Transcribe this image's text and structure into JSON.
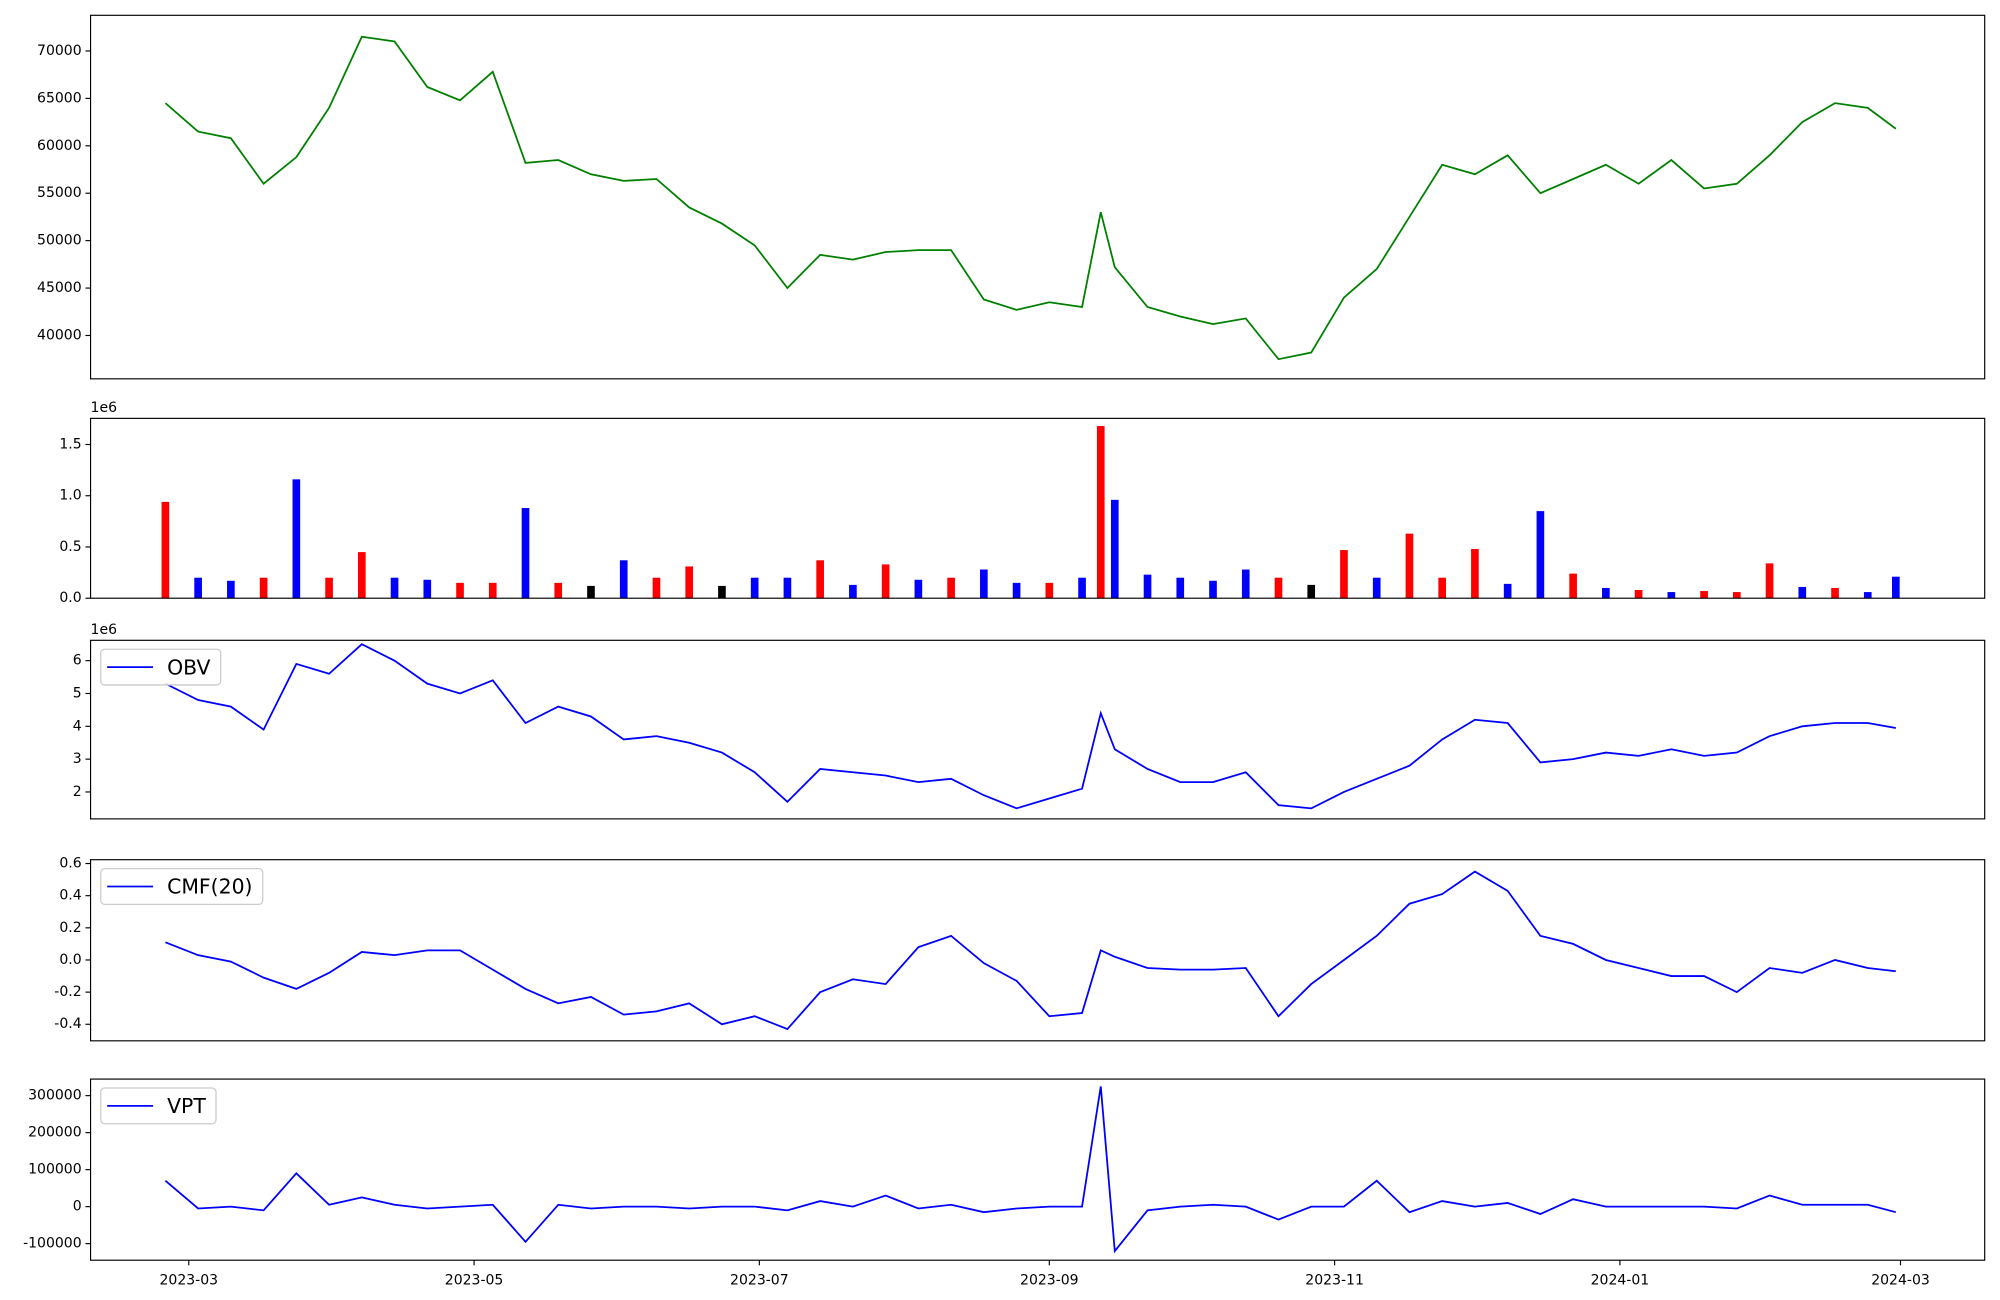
{
  "chart_data": [
    {
      "type": "line",
      "x": [
        "2023-02-24",
        "2023-03-03",
        "2023-03-10",
        "2023-03-17",
        "2023-03-24",
        "2023-03-31",
        "2023-04-07",
        "2023-04-14",
        "2023-04-21",
        "2023-04-28",
        "2023-05-05",
        "2023-05-12",
        "2023-05-19",
        "2023-05-26",
        "2023-06-02",
        "2023-06-09",
        "2023-06-16",
        "2023-06-23",
        "2023-06-30",
        "2023-07-07",
        "2023-07-14",
        "2023-07-21",
        "2023-07-28",
        "2023-08-04",
        "2023-08-11",
        "2023-08-18",
        "2023-08-25",
        "2023-09-01",
        "2023-09-08",
        "2023-09-12",
        "2023-09-15",
        "2023-09-22",
        "2023-09-29",
        "2023-10-06",
        "2023-10-13",
        "2023-10-20",
        "2023-10-27",
        "2023-11-03",
        "2023-11-10",
        "2023-11-17",
        "2023-11-24",
        "2023-12-01",
        "2023-12-08",
        "2023-12-15",
        "2023-12-22",
        "2023-12-29",
        "2024-01-05",
        "2024-01-12",
        "2024-01-19",
        "2024-01-26",
        "2024-02-02",
        "2024-02-09",
        "2024-02-16",
        "2024-02-23",
        "2024-02-29"
      ],
      "series": [
        {
          "color": "#008000",
          "values": [
            64500,
            61500,
            60800,
            56000,
            58800,
            64000,
            71500,
            71000,
            66200,
            64800,
            67800,
            58200,
            58500,
            57000,
            56300,
            56500,
            53500,
            51800,
            49500,
            45000,
            48500,
            48000,
            48800,
            49000,
            49000,
            43800,
            42700,
            43500,
            43000,
            53000,
            47200,
            43000,
            42000,
            41200,
            41800,
            37500,
            38200,
            44000,
            47000,
            52500,
            58000,
            57000,
            59000,
            55000,
            56500,
            58000,
            56000,
            58500,
            55500,
            56000,
            59000,
            62500,
            64500,
            64000,
            61800
          ]
        }
      ],
      "xlim": [
        "2023-02-08",
        "2024-03-19"
      ],
      "ylim": [
        35430,
        73760
      ],
      "yticks": [
        40000,
        45000,
        50000,
        55000,
        60000,
        65000,
        70000
      ]
    },
    {
      "type": "bar",
      "x": [
        "2023-02-24",
        "2023-03-03",
        "2023-03-10",
        "2023-03-17",
        "2023-03-24",
        "2023-03-31",
        "2023-04-07",
        "2023-04-14",
        "2023-04-21",
        "2023-04-28",
        "2023-05-05",
        "2023-05-12",
        "2023-05-19",
        "2023-05-26",
        "2023-06-02",
        "2023-06-09",
        "2023-06-16",
        "2023-06-23",
        "2023-06-30",
        "2023-07-07",
        "2023-07-14",
        "2023-07-21",
        "2023-07-28",
        "2023-08-04",
        "2023-08-11",
        "2023-08-18",
        "2023-08-25",
        "2023-09-01",
        "2023-09-08",
        "2023-09-12",
        "2023-09-15",
        "2023-09-22",
        "2023-09-29",
        "2023-10-06",
        "2023-10-13",
        "2023-10-20",
        "2023-10-27",
        "2023-11-03",
        "2023-11-10",
        "2023-11-17",
        "2023-11-24",
        "2023-12-01",
        "2023-12-08",
        "2023-12-15",
        "2023-12-22",
        "2023-12-29",
        "2024-01-05",
        "2024-01-12",
        "2024-01-19",
        "2024-01-26",
        "2024-02-02",
        "2024-02-09",
        "2024-02-16",
        "2024-02-23",
        "2024-02-29"
      ],
      "values": [
        940000,
        200000,
        170000,
        200000,
        1160000,
        200000,
        450000,
        200000,
        180000,
        150000,
        150000,
        880000,
        150000,
        120000,
        370000,
        200000,
        310000,
        120000,
        200000,
        200000,
        370000,
        130000,
        330000,
        180000,
        200000,
        280000,
        150000,
        150000,
        200000,
        1680000,
        960000,
        230000,
        200000,
        170000,
        280000,
        200000,
        130000,
        470000,
        200000,
        630000,
        200000,
        480000,
        140000,
        850000,
        240000,
        100000,
        80000,
        60000,
        70000,
        60000,
        340000,
        110000,
        100000,
        60000,
        210000
      ],
      "colors": [
        "red",
        "blue",
        "blue",
        "red",
        "blue",
        "red",
        "red",
        "blue",
        "blue",
        "red",
        "red",
        "blue",
        "red",
        "black",
        "blue",
        "red",
        "red",
        "black",
        "blue",
        "blue",
        "red",
        "blue",
        "red",
        "blue",
        "red",
        "blue",
        "blue",
        "red",
        "blue",
        "red",
        "blue",
        "blue",
        "blue",
        "blue",
        "blue",
        "red",
        "black",
        "red",
        "blue",
        "red",
        "red",
        "red",
        "blue",
        "blue",
        "red",
        "blue",
        "red",
        "blue",
        "red",
        "red",
        "red",
        "blue",
        "red",
        "blue",
        "blue"
      ],
      "xlim": [
        "2023-02-08",
        "2024-03-19"
      ],
      "ylim": [
        0,
        1755000
      ],
      "offset_text": "1e6",
      "yticks": [
        {
          "value": 0,
          "label": "0.0"
        },
        {
          "value": 500000,
          "label": "0.5"
        },
        {
          "value": 1000000,
          "label": "1.0"
        },
        {
          "value": 1500000,
          "label": "1.5"
        }
      ]
    },
    {
      "type": "line",
      "x": [
        "2023-02-24",
        "2023-03-03",
        "2023-03-10",
        "2023-03-17",
        "2023-03-24",
        "2023-03-31",
        "2023-04-07",
        "2023-04-14",
        "2023-04-21",
        "2023-04-28",
        "2023-05-05",
        "2023-05-12",
        "2023-05-19",
        "2023-05-26",
        "2023-06-02",
        "2023-06-09",
        "2023-06-16",
        "2023-06-23",
        "2023-06-30",
        "2023-07-07",
        "2023-07-14",
        "2023-07-21",
        "2023-07-28",
        "2023-08-04",
        "2023-08-11",
        "2023-08-18",
        "2023-08-25",
        "2023-09-01",
        "2023-09-08",
        "2023-09-12",
        "2023-09-15",
        "2023-09-22",
        "2023-09-29",
        "2023-10-06",
        "2023-10-13",
        "2023-10-20",
        "2023-10-27",
        "2023-11-03",
        "2023-11-10",
        "2023-11-17",
        "2023-11-24",
        "2023-12-01",
        "2023-12-08",
        "2023-12-15",
        "2023-12-22",
        "2023-12-29",
        "2024-01-05",
        "2024-01-12",
        "2024-01-19",
        "2024-01-26",
        "2024-02-02",
        "2024-02-09",
        "2024-02-16",
        "2024-02-23",
        "2024-02-29"
      ],
      "series": [
        {
          "name": "OBV",
          "color": "#0000ff",
          "values": [
            5300000,
            4800000,
            4600000,
            3900000,
            5900000,
            5600000,
            6500000,
            6000000,
            5300000,
            5000000,
            5400000,
            4100000,
            4600000,
            4300000,
            3600000,
            3700000,
            3500000,
            3200000,
            2600000,
            1700000,
            2700000,
            2600000,
            2500000,
            2300000,
            2400000,
            1900000,
            1500000,
            1800000,
            2100000,
            4400000,
            3300000,
            2700000,
            2300000,
            2300000,
            2600000,
            1600000,
            1500000,
            2000000,
            2400000,
            2800000,
            3600000,
            4200000,
            4100000,
            2900000,
            3000000,
            3200000,
            3100000,
            3300000,
            3100000,
            3200000,
            3700000,
            4000000,
            4100000,
            4100000,
            3950000
          ]
        }
      ],
      "xlim": [
        "2023-02-08",
        "2024-03-19"
      ],
      "ylim": [
        1180000,
        6620000
      ],
      "offset_text": "1e6",
      "yticks": [
        {
          "value": 2000000,
          "label": "2"
        },
        {
          "value": 3000000,
          "label": "3"
        },
        {
          "value": 4000000,
          "label": "4"
        },
        {
          "value": 5000000,
          "label": "5"
        },
        {
          "value": 6000000,
          "label": "6"
        }
      ],
      "legend": "upper left"
    },
    {
      "type": "line",
      "x": [
        "2023-02-24",
        "2023-03-03",
        "2023-03-10",
        "2023-03-17",
        "2023-03-24",
        "2023-03-31",
        "2023-04-07",
        "2023-04-14",
        "2023-04-21",
        "2023-04-28",
        "2023-05-05",
        "2023-05-12",
        "2023-05-19",
        "2023-05-26",
        "2023-06-02",
        "2023-06-09",
        "2023-06-16",
        "2023-06-23",
        "2023-06-30",
        "2023-07-07",
        "2023-07-14",
        "2023-07-21",
        "2023-07-28",
        "2023-08-04",
        "2023-08-11",
        "2023-08-18",
        "2023-08-25",
        "2023-09-01",
        "2023-09-08",
        "2023-09-12",
        "2023-09-15",
        "2023-09-22",
        "2023-09-29",
        "2023-10-06",
        "2023-10-13",
        "2023-10-20",
        "2023-10-27",
        "2023-11-03",
        "2023-11-10",
        "2023-11-17",
        "2023-11-24",
        "2023-12-01",
        "2023-12-08",
        "2023-12-15",
        "2023-12-22",
        "2023-12-29",
        "2024-01-05",
        "2024-01-12",
        "2024-01-19",
        "2024-01-26",
        "2024-02-02",
        "2024-02-09",
        "2024-02-16",
        "2024-02-23",
        "2024-02-29"
      ],
      "series": [
        {
          "name": "CMF(20)",
          "color": "#0000ff",
          "values": [
            0.11,
            0.03,
            -0.01,
            -0.11,
            -0.18,
            -0.08,
            0.05,
            0.03,
            0.06,
            0.06,
            -0.06,
            -0.18,
            -0.27,
            -0.23,
            -0.34,
            -0.32,
            -0.27,
            -0.4,
            -0.35,
            -0.43,
            -0.2,
            -0.12,
            -0.15,
            0.08,
            0.15,
            -0.02,
            -0.13,
            -0.35,
            -0.33,
            0.06,
            0.02,
            -0.05,
            -0.06,
            -0.06,
            -0.05,
            -0.35,
            -0.15,
            0.0,
            0.15,
            0.35,
            0.41,
            0.55,
            0.43,
            0.15,
            0.1,
            0.0,
            -0.05,
            -0.1,
            -0.1,
            -0.2,
            -0.05,
            -0.08,
            0.0,
            -0.05,
            -0.07
          ]
        }
      ],
      "xlim": [
        "2023-02-08",
        "2024-03-19"
      ],
      "ylim": [
        -0.503,
        0.624
      ],
      "yticks": [
        -0.4,
        -0.2,
        {
          "value": 0,
          "label": "0.0"
        },
        0.2,
        0.4,
        0.6
      ],
      "legend": "upper left"
    },
    {
      "type": "line",
      "x": [
        "2023-02-24",
        "2023-03-03",
        "2023-03-10",
        "2023-03-17",
        "2023-03-24",
        "2023-03-31",
        "2023-04-07",
        "2023-04-14",
        "2023-04-21",
        "2023-04-28",
        "2023-05-05",
        "2023-05-12",
        "2023-05-19",
        "2023-05-26",
        "2023-06-02",
        "2023-06-09",
        "2023-06-16",
        "2023-06-23",
        "2023-06-30",
        "2023-07-07",
        "2023-07-14",
        "2023-07-21",
        "2023-07-28",
        "2023-08-04",
        "2023-08-11",
        "2023-08-18",
        "2023-08-25",
        "2023-09-01",
        "2023-09-08",
        "2023-09-12",
        "2023-09-15",
        "2023-09-22",
        "2023-09-29",
        "2023-10-06",
        "2023-10-13",
        "2023-10-20",
        "2023-10-27",
        "2023-11-03",
        "2023-11-10",
        "2023-11-17",
        "2023-11-24",
        "2023-12-01",
        "2023-12-08",
        "2023-12-15",
        "2023-12-22",
        "2023-12-29",
        "2024-01-05",
        "2024-01-12",
        "2024-01-19",
        "2024-01-26",
        "2024-02-02",
        "2024-02-09",
        "2024-02-16",
        "2024-02-23",
        "2024-02-29"
      ],
      "series": [
        {
          "name": "VPT",
          "color": "#0000ff",
          "values": [
            70000,
            -5000,
            0,
            -10000,
            90000,
            5000,
            25000,
            5000,
            -5000,
            0,
            5000,
            -95000,
            5000,
            -5000,
            0,
            0,
            -5000,
            0,
            0,
            -10000,
            15000,
            0,
            30000,
            -5000,
            5000,
            -15000,
            -5000,
            0,
            0,
            325000,
            -120000,
            -10000,
            0,
            5000,
            0,
            -35000,
            0,
            0,
            70000,
            -15000,
            15000,
            0,
            10000,
            -20000,
            20000,
            0,
            0,
            0,
            0,
            -5000,
            30000,
            5000,
            5000,
            5000,
            -15000
          ]
        }
      ],
      "xlim": [
        "2023-02-08",
        "2024-03-19"
      ],
      "ylim": [
        -144800,
        344800
      ],
      "yticks": [
        -100000,
        0,
        100000,
        200000,
        300000
      ],
      "xticks": [
        {
          "value": "2023-03-01",
          "label": "2023-03"
        },
        {
          "value": "2023-05-01",
          "label": "2023-05"
        },
        {
          "value": "2023-07-01",
          "label": "2023-07"
        },
        {
          "value": "2023-09-01",
          "label": "2023-09"
        },
        {
          "value": "2023-11-01",
          "label": "2023-11"
        },
        {
          "value": "2024-01-01",
          "label": "2024-01"
        },
        {
          "value": "2024-03-01",
          "label": "2024-03"
        }
      ],
      "legend": "upper left"
    }
  ]
}
